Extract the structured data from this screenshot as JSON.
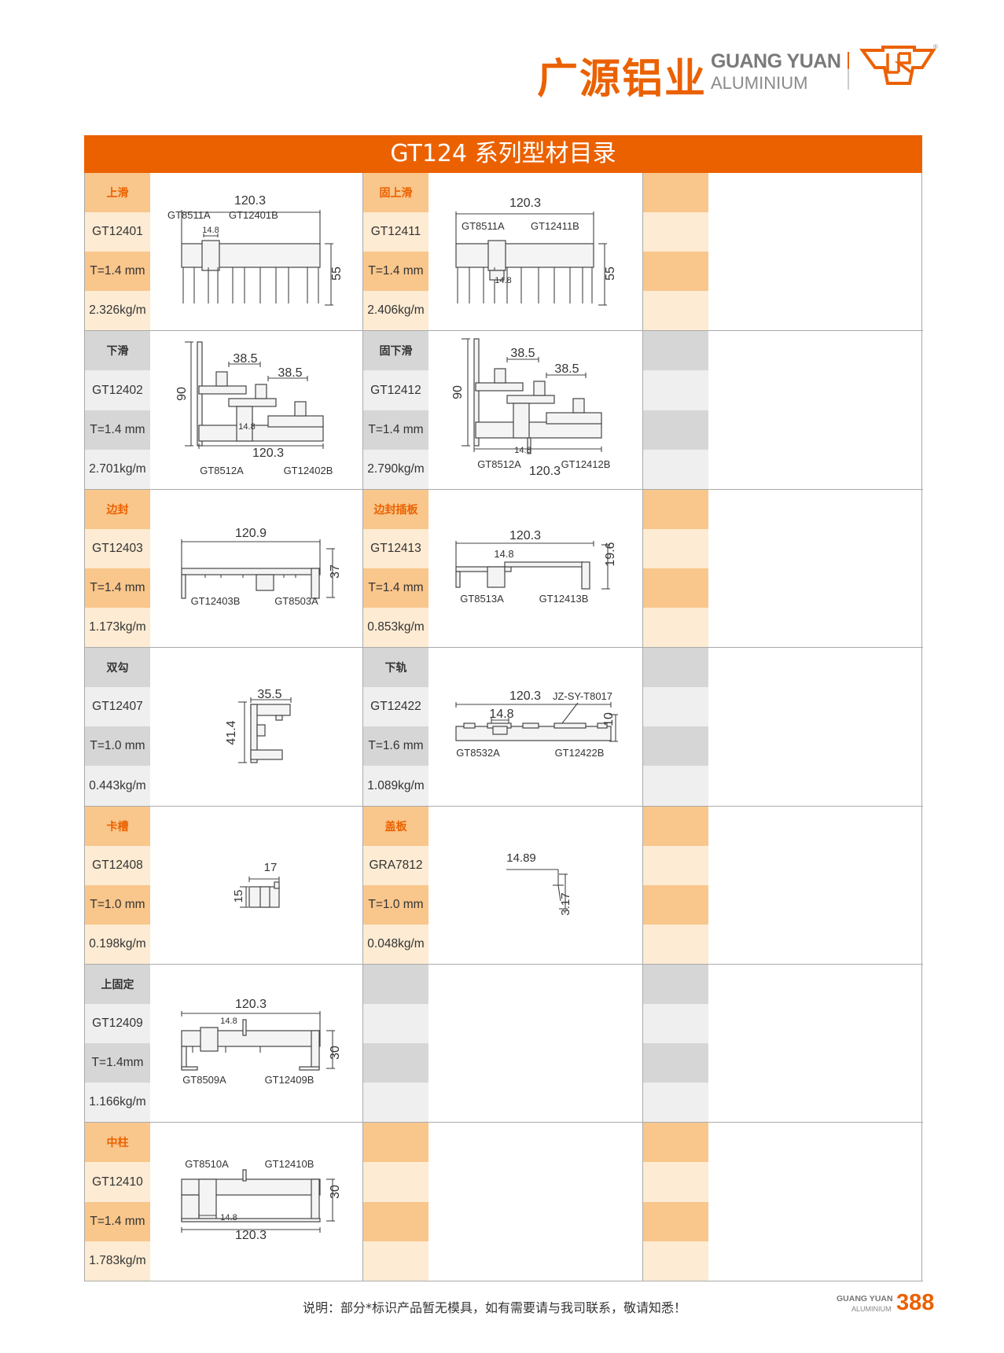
{
  "brand": {
    "name_cn": "广源铝业",
    "name_en_1": "GUANG YUAN",
    "name_en_2": "ALUMINIUM",
    "emblem_text": "CR",
    "registered": "®",
    "color": "#eb6100"
  },
  "title": "GT124 系列型材目录",
  "colors": {
    "accent": "#eb6100",
    "orange_strong": "#f9c68b",
    "orange_pale": "#fdebd3",
    "gray_strong": "#d6d6d6",
    "gray_pale": "#efefef"
  },
  "rows": [
    [
      {
        "theme": "o",
        "name": "上滑",
        "code": "GT12401",
        "thickness": "T=1.4 mm",
        "weight": "2.326kg/m",
        "labels": [
          "120.3",
          "GT8511A",
          "GT12401B",
          "14.8",
          "55"
        ]
      },
      {
        "theme": "o",
        "name": "固上滑",
        "code": "GT12411",
        "thickness": "T=1.4 mm",
        "weight": "2.406kg/m",
        "labels": [
          "120.3",
          "GT8511A",
          "GT12411B",
          "14.8",
          "55"
        ]
      },
      {
        "theme": "o"
      }
    ],
    [
      {
        "theme": "g",
        "name": "下滑",
        "code": "GT12402",
        "thickness": "T=1.4 mm",
        "weight": "2.701kg/m",
        "labels": [
          "38.5",
          "38.5",
          "90",
          "14.8",
          "120.3",
          "GT8512A",
          "GT12402B"
        ]
      },
      {
        "theme": "g",
        "name": "固下滑",
        "code": "GT12412",
        "thickness": "T=1.4 mm",
        "weight": "2.790kg/m",
        "labels": [
          "38.5",
          "38.5",
          "90",
          "14.8",
          "GT8512A",
          "120.3",
          "GT12412B"
        ]
      },
      {
        "theme": "g"
      }
    ],
    [
      {
        "theme": "o",
        "name": "边封",
        "code": "GT12403",
        "thickness": "T=1.4 mm",
        "weight": "1.173kg/m",
        "labels": [
          "120.9",
          "37",
          "GT12403B",
          "GT8503A"
        ]
      },
      {
        "theme": "o",
        "name": "边封插板",
        "code": "GT12413",
        "thickness": "T=1.4 mm",
        "weight": "0.853kg/m",
        "labels": [
          "120.3",
          "14.8",
          "19.6",
          "GT8513A",
          "GT12413B"
        ]
      },
      {
        "theme": "o"
      }
    ],
    [
      {
        "theme": "g",
        "name": "双勾",
        "code": "GT12407",
        "thickness": "T=1.0 mm",
        "weight": "0.443kg/m",
        "labels": [
          "35.5",
          "41.4"
        ]
      },
      {
        "theme": "g",
        "name": "下轨",
        "code": "GT12422",
        "thickness": "T=1.6 mm",
        "weight": "1.089kg/m",
        "labels": [
          "120.3",
          "JZ-SY-T8017",
          "14.8",
          "10",
          "GT8532A",
          "GT12422B"
        ]
      },
      {
        "theme": "g"
      }
    ],
    [
      {
        "theme": "o",
        "name": "卡槽",
        "code": "GT12408",
        "thickness": "T=1.0 mm",
        "weight": "0.198kg/m",
        "labels": [
          "17",
          "15"
        ]
      },
      {
        "theme": "o",
        "name": "盖板",
        "code": "GRA7812",
        "thickness": "T=1.0 mm",
        "weight": "0.048kg/m",
        "labels": [
          "14.89",
          "3.17"
        ]
      },
      {
        "theme": "o"
      }
    ],
    [
      {
        "theme": "g",
        "name": "上固定",
        "code": "GT12409",
        "thickness": "T=1.4mm",
        "weight": "1.166kg/m",
        "labels": [
          "120.3",
          "14.8",
          "30",
          "GT8509A",
          "GT12409B"
        ]
      },
      {
        "theme": "g"
      },
      {
        "theme": "g"
      }
    ],
    [
      {
        "theme": "o",
        "name": "中柱",
        "code": "GT12410",
        "thickness": "T=1.4 mm",
        "weight": "1.783kg/m",
        "labels": [
          "GT8510A",
          "GT12410B",
          "30",
          "14.8",
          "120.3"
        ]
      },
      {
        "theme": "o"
      },
      {
        "theme": "o"
      }
    ]
  ],
  "footer": {
    "note": "说明：部分*标识产品暂无模具，如有需要请与我司联系，敬请知悉！",
    "brand_1": "GUANG YUAN",
    "brand_2": "ALUMINIUM",
    "page_number": "388"
  }
}
